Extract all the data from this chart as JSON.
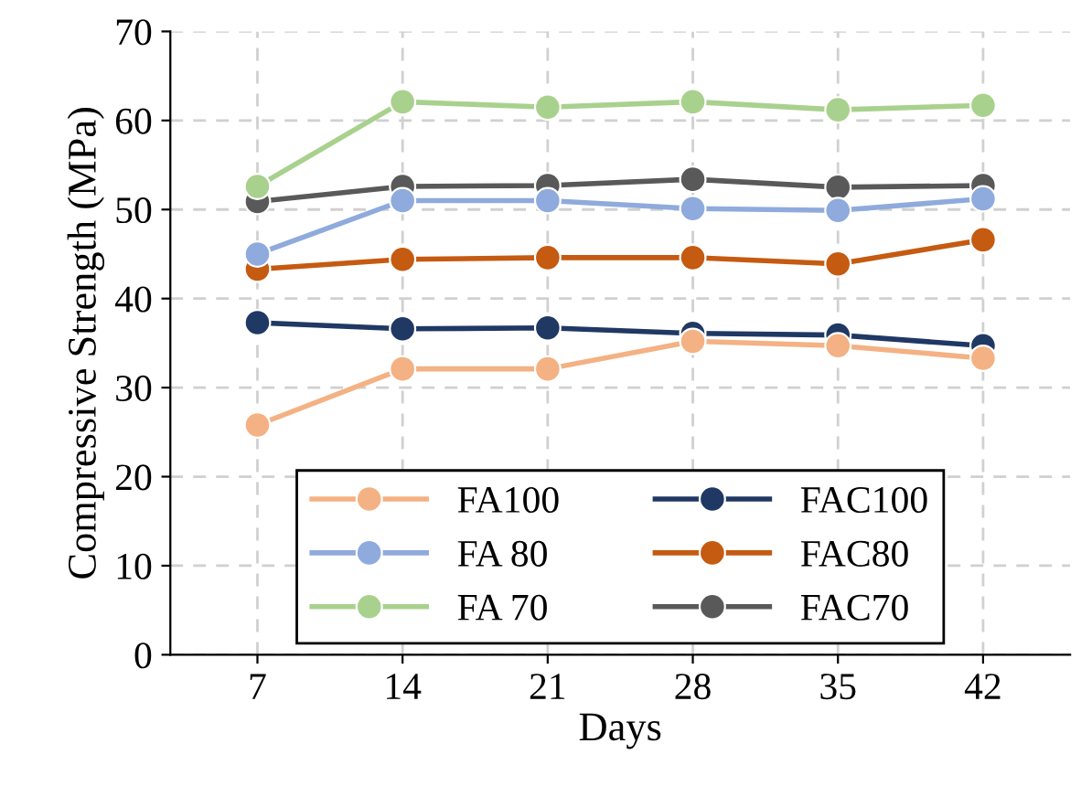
{
  "chart_data": {
    "type": "line",
    "xlabel": "Days",
    "ylabel": "Compressive Strength (MPa)",
    "categories": [
      "7",
      "14",
      "21",
      "28",
      "35",
      "42"
    ],
    "series": [
      {
        "name": "FA100",
        "color": "#f4b183",
        "values": [
          25.8,
          32.1,
          32.1,
          35.2,
          34.7,
          33.3
        ]
      },
      {
        "name": "FA 80",
        "color": "#8faadc",
        "values": [
          45.0,
          51.0,
          51.0,
          50.1,
          49.9,
          51.2
        ]
      },
      {
        "name": "FA 70",
        "color": "#a9d18e",
        "values": [
          52.6,
          62.1,
          61.5,
          62.1,
          61.2,
          61.7
        ]
      },
      {
        "name": "FAC100",
        "color": "#203864",
        "values": [
          37.3,
          36.6,
          36.7,
          36.1,
          35.9,
          34.7
        ]
      },
      {
        "name": "FAC80",
        "color": "#c55a11",
        "values": [
          43.3,
          44.4,
          44.6,
          44.6,
          43.9,
          46.6
        ]
      },
      {
        "name": "FAC70",
        "color": "#595959",
        "values": [
          50.9,
          52.6,
          52.7,
          53.4,
          52.5,
          52.7
        ]
      }
    ],
    "ylim": [
      0,
      70
    ],
    "yticks": [
      0,
      10,
      20,
      30,
      40,
      50,
      60,
      70
    ],
    "grid": true,
    "legend": "bottom",
    "marker": "circle",
    "line_style": "solid"
  }
}
